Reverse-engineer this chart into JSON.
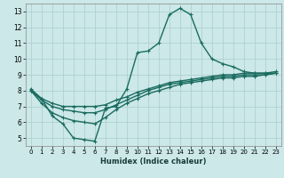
{
  "xlabel": "Humidex (Indice chaleur)",
  "xlim": [
    -0.5,
    23.5
  ],
  "ylim": [
    4.5,
    13.5
  ],
  "yticks": [
    5,
    6,
    7,
    8,
    9,
    10,
    11,
    12,
    13
  ],
  "xticks": [
    0,
    1,
    2,
    3,
    4,
    5,
    6,
    7,
    8,
    9,
    10,
    11,
    12,
    13,
    14,
    15,
    16,
    17,
    18,
    19,
    20,
    21,
    22,
    23
  ],
  "background_color": "#cce8e8",
  "grid_color": "#aacccc",
  "line_color": "#1a6b60",
  "lines": [
    {
      "x": [
        0,
        1,
        2,
        3,
        4,
        5,
        6,
        7,
        8,
        9,
        10,
        11,
        12,
        13,
        14,
        15,
        16,
        17,
        18,
        19,
        20,
        21,
        22,
        23
      ],
      "y": [
        8.1,
        7.5,
        6.4,
        5.9,
        5.0,
        4.9,
        4.8,
        6.9,
        7.0,
        8.1,
        10.4,
        10.5,
        11.0,
        12.8,
        13.2,
        12.8,
        11.0,
        10.0,
        9.7,
        9.5,
        9.2,
        9.1,
        9.1,
        9.1
      ]
    },
    {
      "x": [
        0,
        1,
        2,
        3,
        4,
        5,
        6,
        7,
        8,
        9,
        10,
        11,
        12,
        13,
        14,
        15,
        16,
        17,
        18,
        19,
        20,
        21,
        22,
        23
      ],
      "y": [
        8.0,
        7.5,
        7.2,
        7.0,
        7.0,
        7.0,
        7.0,
        7.1,
        7.4,
        7.6,
        7.9,
        8.1,
        8.3,
        8.5,
        8.6,
        8.7,
        8.8,
        8.9,
        9.0,
        9.0,
        9.1,
        9.1,
        9.1,
        9.2
      ]
    },
    {
      "x": [
        0,
        1,
        2,
        3,
        4,
        5,
        6,
        7,
        8,
        9,
        10,
        11,
        12,
        13,
        14,
        15,
        16,
        17,
        18,
        19,
        20,
        21,
        22,
        23
      ],
      "y": [
        8.0,
        7.4,
        7.0,
        6.8,
        6.7,
        6.6,
        6.6,
        6.8,
        7.1,
        7.4,
        7.7,
        8.0,
        8.2,
        8.4,
        8.5,
        8.6,
        8.7,
        8.8,
        8.9,
        8.9,
        9.0,
        9.0,
        9.0,
        9.1
      ]
    },
    {
      "x": [
        0,
        1,
        2,
        3,
        4,
        5,
        6,
        7,
        8,
        9,
        10,
        11,
        12,
        13,
        14,
        15,
        16,
        17,
        18,
        19,
        20,
        21,
        22,
        23
      ],
      "y": [
        8.0,
        7.2,
        6.6,
        6.3,
        6.1,
        6.0,
        5.9,
        6.3,
        6.8,
        7.2,
        7.5,
        7.8,
        8.0,
        8.2,
        8.4,
        8.5,
        8.6,
        8.7,
        8.8,
        8.8,
        8.9,
        8.9,
        9.0,
        9.1
      ]
    }
  ]
}
